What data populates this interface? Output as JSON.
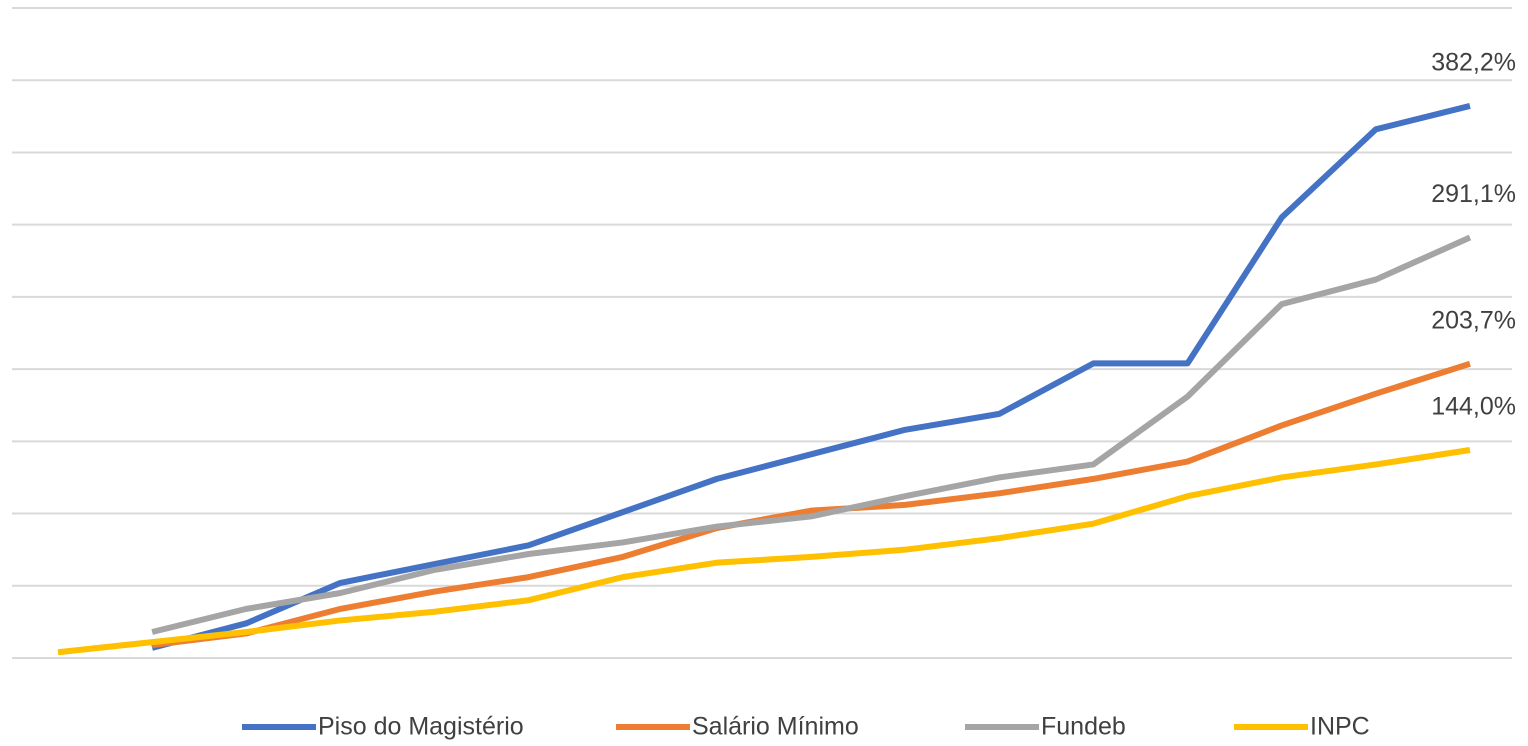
{
  "chart_data": {
    "type": "line",
    "categories": [
      null,
      null,
      null,
      null,
      null,
      null,
      null,
      null,
      null,
      null,
      null,
      null,
      null,
      null,
      null,
      null
    ],
    "series": [
      {
        "name": "Piso do Magistério",
        "color": "#4472c4",
        "values": [
          null,
          7,
          24,
          52,
          65,
          78,
          101,
          124,
          141,
          158,
          169,
          204,
          204,
          305,
          366,
          382.2
        ],
        "value_labels": [
          null,
          null,
          null,
          null,
          null,
          null,
          null,
          null,
          null,
          null,
          null,
          null,
          null,
          null,
          null,
          "382,2%"
        ]
      },
      {
        "name": "Salário Mínimo",
        "color": "#ed7d31",
        "values": [
          null,
          9,
          17,
          34,
          46,
          56,
          70,
          90,
          102,
          106,
          114,
          124,
          136,
          161,
          183,
          203.7
        ],
        "value_labels": [
          null,
          null,
          null,
          null,
          null,
          null,
          null,
          null,
          null,
          null,
          null,
          null,
          null,
          null,
          null,
          "203,7%"
        ]
      },
      {
        "name": "Fundeb",
        "color": "#a5a5a5",
        "values": [
          null,
          18,
          34,
          45,
          61,
          72,
          80,
          91,
          98,
          112,
          125,
          134,
          181,
          245,
          262,
          291.1
        ],
        "value_labels": [
          null,
          null,
          null,
          null,
          null,
          null,
          null,
          null,
          null,
          null,
          null,
          null,
          null,
          null,
          null,
          "291,1%"
        ]
      },
      {
        "name": "INPC",
        "color": "#ffc000",
        "values": [
          4,
          11,
          18,
          26,
          32,
          40,
          56,
          66,
          70,
          75,
          83,
          93,
          112,
          125,
          134,
          144
        ],
        "value_labels": [
          null,
          null,
          null,
          null,
          null,
          null,
          null,
          null,
          null,
          null,
          null,
          null,
          null,
          null,
          null,
          "144,0%"
        ]
      }
    ],
    "ylim": [
      0,
      450
    ],
    "yticks": [
      0,
      50,
      100,
      150,
      200,
      250,
      300,
      350,
      400,
      450
    ],
    "grid": true,
    "legend": "bottom"
  }
}
